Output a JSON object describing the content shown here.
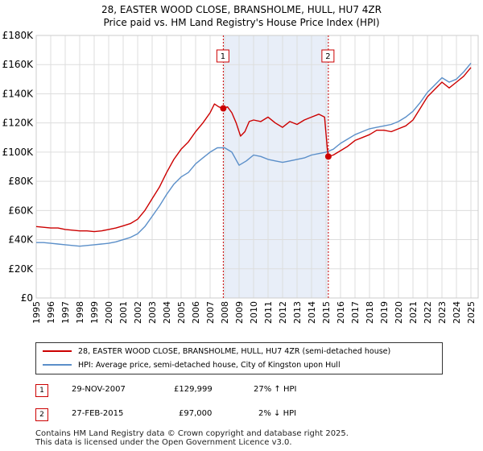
{
  "title": "28, EASTER WOOD CLOSE, BRANSHOLME, HULL, HU7 4ZR",
  "subtitle": "Price paid vs. HM Land Registry's House Price Index (HPI)",
  "colors": {
    "property": "#cc0000",
    "hpi": "#5b8fc9",
    "shade": "#e8eef8",
    "marker_line": "#cc0000",
    "grid": "#dddddd"
  },
  "chart_data": {
    "type": "line",
    "title": "28, EASTER WOOD CLOSE, BRANSHOLME, HULL, HU7 4ZR",
    "subtitle": "Price paid vs. HM Land Registry's House Price Index (HPI)",
    "xlim": [
      1995,
      2025.5
    ],
    "ylim": [
      0,
      180000
    ],
    "x_ticks": [
      "1995",
      "1996",
      "1997",
      "1998",
      "1999",
      "2000",
      "2001",
      "2002",
      "2003",
      "2004",
      "2005",
      "2006",
      "2007",
      "2008",
      "2009",
      "2010",
      "2011",
      "2012",
      "2013",
      "2014",
      "2015",
      "2016",
      "2017",
      "2018",
      "2019",
      "2020",
      "2021",
      "2022",
      "2023",
      "2024",
      "2025"
    ],
    "y_ticks": [
      {
        "value": 0,
        "label": "£0"
      },
      {
        "value": 20000,
        "label": "£20K"
      },
      {
        "value": 40000,
        "label": "£40K"
      },
      {
        "value": 60000,
        "label": "£60K"
      },
      {
        "value": 80000,
        "label": "£80K"
      },
      {
        "value": 100000,
        "label": "£100K"
      },
      {
        "value": 120000,
        "label": "£120K"
      },
      {
        "value": 140000,
        "label": "£140K"
      },
      {
        "value": 160000,
        "label": "£160K"
      },
      {
        "value": 180000,
        "label": "£180K"
      }
    ],
    "shaded_region": [
      2007.91,
      2015.16
    ],
    "series": [
      {
        "name": "28, EASTER WOOD CLOSE, BRANSHOLME, HULL, HU7 4ZR (semi-detached house)",
        "x": [
          1995,
          1995.5,
          1996,
          1996.5,
          1997,
          1997.5,
          1998,
          1998.5,
          1999,
          1999.5,
          2000,
          2000.5,
          2001,
          2001.5,
          2002,
          2002.5,
          2003,
          2003.5,
          2004,
          2004.5,
          2005,
          2005.5,
          2006,
          2006.5,
          2007,
          2007.3,
          2007.6,
          2007.91,
          2008.2,
          2008.5,
          2008.8,
          2009.1,
          2009.4,
          2009.7,
          2010,
          2010.5,
          2011,
          2011.5,
          2012,
          2012.5,
          2013,
          2013.5,
          2014,
          2014.5,
          2014.9,
          2015.1,
          2015.16,
          2015.5,
          2016,
          2016.5,
          2017,
          2017.5,
          2018,
          2018.5,
          2019,
          2019.5,
          2020,
          2020.5,
          2021,
          2021.5,
          2022,
          2022.5,
          2023,
          2023.5,
          2024,
          2024.5,
          2025
        ],
        "values": [
          49000,
          48500,
          48000,
          48000,
          47000,
          46500,
          46000,
          46000,
          45500,
          46000,
          47000,
          48000,
          49500,
          51000,
          54000,
          60000,
          68000,
          76000,
          86000,
          95000,
          102000,
          107000,
          114000,
          120000,
          127000,
          133000,
          131000,
          129999,
          131000,
          127000,
          120000,
          111000,
          114000,
          121000,
          122000,
          121000,
          124000,
          120000,
          117000,
          121000,
          119000,
          122000,
          124000,
          126000,
          124000,
          101000,
          97000,
          98000,
          101000,
          104000,
          108000,
          110000,
          112000,
          115000,
          115000,
          114000,
          116000,
          118000,
          122000,
          130000,
          138000,
          143000,
          148000,
          144000,
          148000,
          152000,
          158000
        ]
      },
      {
        "name": "HPI: Average price, semi-detached house, City of Kingston upon Hull",
        "x": [
          1995,
          1995.5,
          1996,
          1996.5,
          1997,
          1997.5,
          1998,
          1998.5,
          1999,
          1999.5,
          2000,
          2000.5,
          2001,
          2001.5,
          2002,
          2002.5,
          2003,
          2003.5,
          2004,
          2004.5,
          2005,
          2005.5,
          2006,
          2006.5,
          2007,
          2007.5,
          2008,
          2008.5,
          2009,
          2009.5,
          2010,
          2010.5,
          2011,
          2011.5,
          2012,
          2012.5,
          2013,
          2013.5,
          2014,
          2014.5,
          2015,
          2015.5,
          2016,
          2016.5,
          2017,
          2017.5,
          2018,
          2018.5,
          2019,
          2019.5,
          2020,
          2020.5,
          2021,
          2021.5,
          2022,
          2022.5,
          2023,
          2023.5,
          2024,
          2024.5,
          2025
        ],
        "values": [
          38000,
          38000,
          37500,
          37000,
          36500,
          36000,
          35500,
          36000,
          36500,
          37000,
          37500,
          38500,
          40000,
          41500,
          44000,
          49000,
          56000,
          63000,
          71000,
          78000,
          83000,
          86000,
          92000,
          96000,
          100000,
          103000,
          103000,
          100000,
          91000,
          94000,
          98000,
          97000,
          95000,
          94000,
          93000,
          94000,
          95000,
          96000,
          98000,
          99000,
          100000,
          102000,
          106000,
          109000,
          112000,
          114000,
          116000,
          117000,
          118000,
          119000,
          121000,
          124000,
          128000,
          134000,
          141000,
          146000,
          151000,
          148000,
          150000,
          155000,
          161000
        ]
      }
    ],
    "annotations": [
      {
        "label": "1",
        "x": 2007.91,
        "y": 129999
      },
      {
        "label": "2",
        "x": 2015.16,
        "y": 97000
      }
    ]
  },
  "legend": {
    "property_label": "28, EASTER WOOD CLOSE, BRANSHOLME, HULL, HU7 4ZR (semi-detached house)",
    "hpi_label": "HPI: Average price, semi-detached house, City of Kingston upon Hull"
  },
  "transactions": [
    {
      "num": "1",
      "date": "29-NOV-2007",
      "price": "£129,999",
      "hpi": "27% ↑ HPI"
    },
    {
      "num": "2",
      "date": "27-FEB-2015",
      "price": "£97,000",
      "hpi": "2% ↓ HPI"
    }
  ],
  "footer": {
    "line1": "Contains HM Land Registry data © Crown copyright and database right 2025.",
    "line2": "This data is licensed under the Open Government Licence v3.0."
  }
}
